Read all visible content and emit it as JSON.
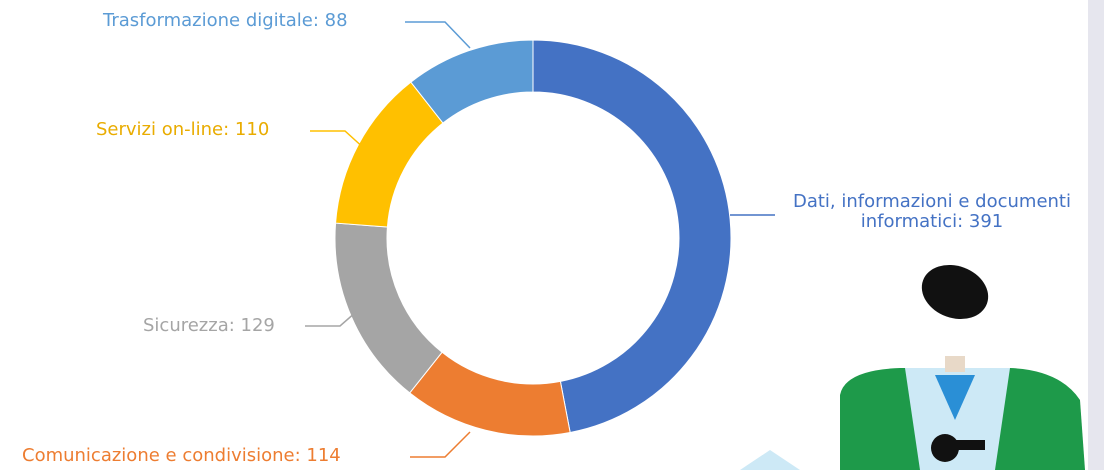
{
  "chart_data": {
    "type": "donut",
    "values": [
      391,
      114,
      129,
      110,
      88
    ],
    "value_labels": [
      "Dati, informazioni e documenti informatici: 391",
      "Comunicazione e condivisione: 114",
      "Sicurezza: 129",
      "Servizi on-line: 110",
      "Trasformazione digitale: 88"
    ],
    "colors": [
      "#4472c4",
      "#ed7d31",
      "#a5a5a5",
      "#ffc000",
      "#5b9bd5"
    ]
  }
}
